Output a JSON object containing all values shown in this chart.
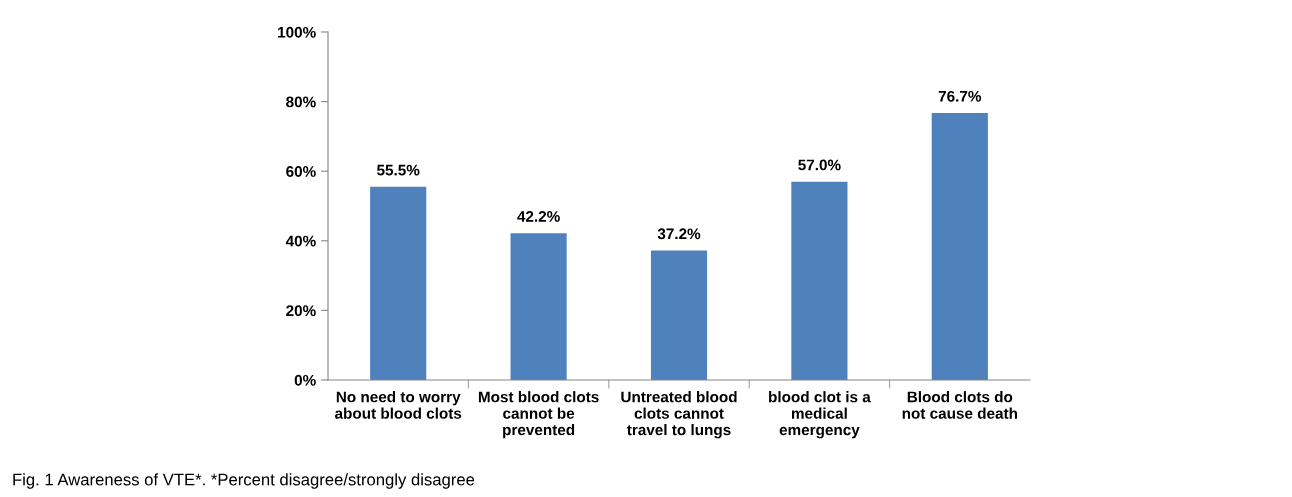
{
  "chart_data": {
    "type": "bar",
    "categories": [
      "No need to worry\nabout blood clots",
      "Most blood clots\ncannot be\nprevented",
      "Untreated blood\nclots cannot\ntravel to lungs",
      "blood clot is a\nmedical\nemergency",
      "Blood clots do\nnot cause death"
    ],
    "values": [
      55.5,
      42.2,
      37.2,
      57.0,
      76.7
    ],
    "value_labels": [
      "55.5%",
      "42.2%",
      "37.2%",
      "57.0%",
      "76.7%"
    ],
    "color": "#4f81bd",
    "ylim": [
      0,
      100
    ],
    "yticks": [
      {
        "value": 0,
        "label": "0%"
      },
      {
        "value": 20,
        "label": "20%"
      },
      {
        "value": 40,
        "label": "40%"
      },
      {
        "value": 60,
        "label": "60%"
      },
      {
        "value": 80,
        "label": "80%"
      },
      {
        "value": 100,
        "label": "100%"
      }
    ],
    "grid": false,
    "legend": false,
    "annotations": [
      "Fig. 1 Awareness of VTE*. *Percent disagree/strongly disagree"
    ]
  }
}
